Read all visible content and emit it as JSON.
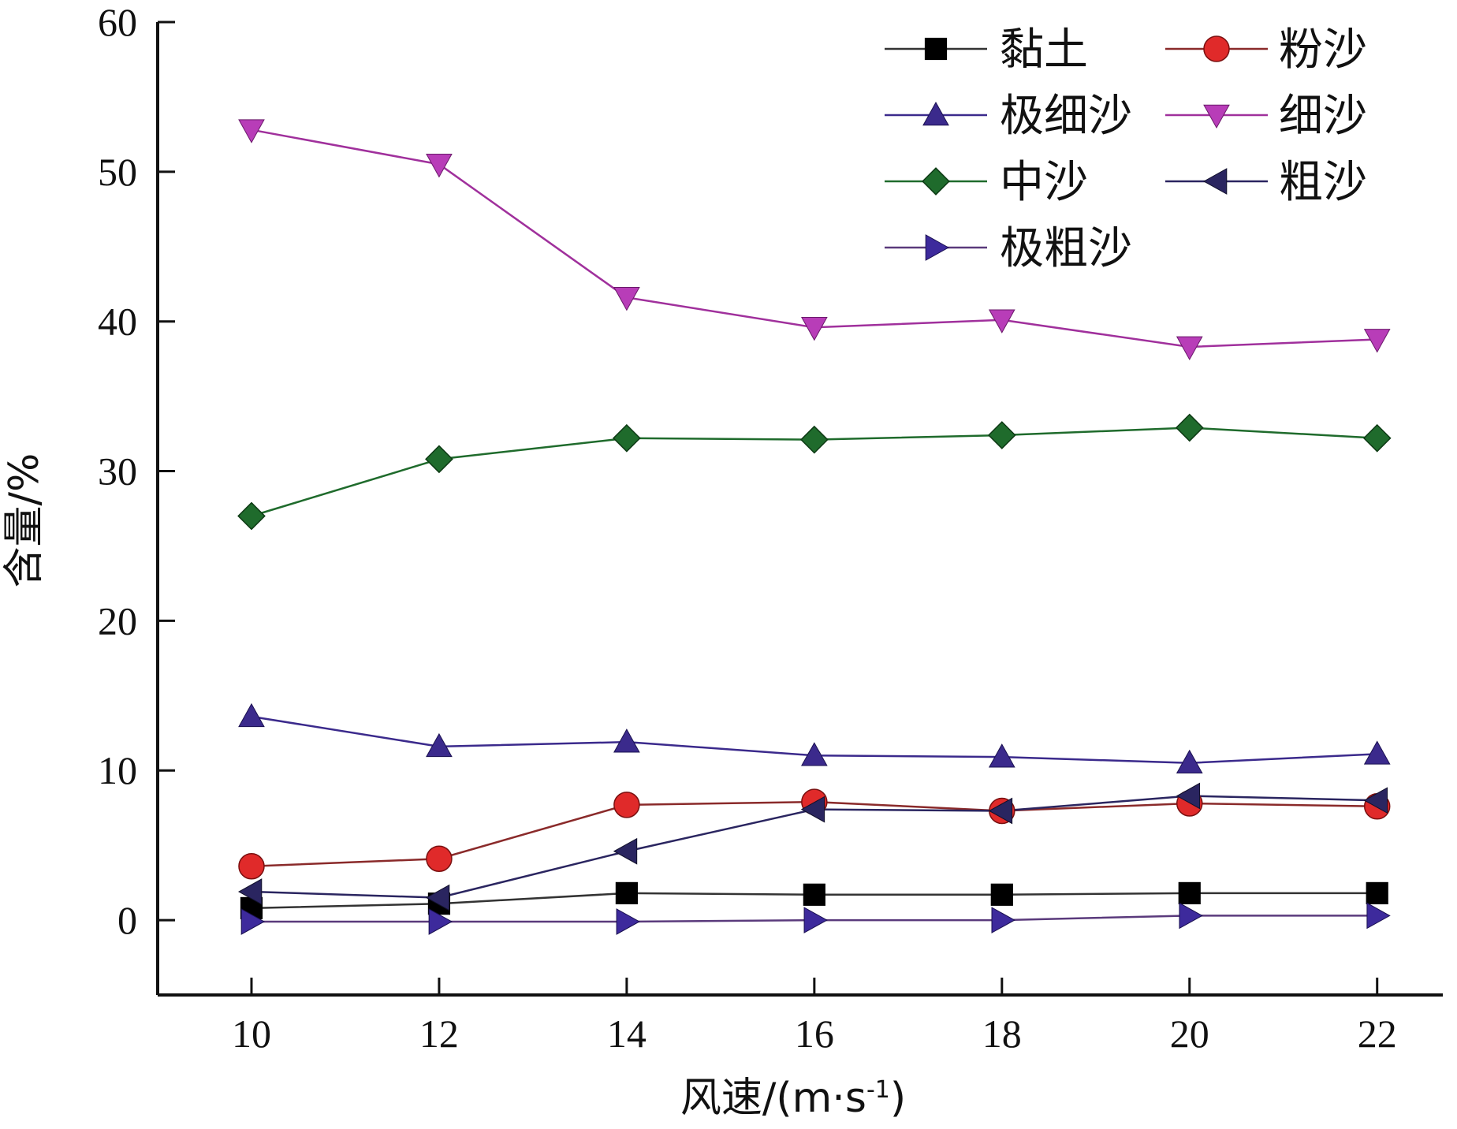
{
  "chart_data": {
    "type": "line",
    "title": "",
    "xlabel": "风速/(m·s-1)",
    "xlabel_parts": {
      "main": "风速/(m·s",
      "sup": "-1",
      "close": ")"
    },
    "ylabel": "含量/%",
    "x": [
      10,
      12,
      14,
      16,
      18,
      20,
      22
    ],
    "xlim": [
      9,
      22.7
    ],
    "ylim": [
      -5,
      60
    ],
    "xticks": [
      10,
      12,
      14,
      16,
      18,
      20,
      22
    ],
    "yticks": [
      0,
      10,
      20,
      30,
      40,
      50,
      60
    ],
    "grid": false,
    "legend_position": "top-right",
    "series": [
      {
        "name": "黏土",
        "marker": "square",
        "color": "#000000",
        "line_color": "#333333",
        "values": [
          0.8,
          1.1,
          1.8,
          1.7,
          1.7,
          1.8,
          1.8
        ]
      },
      {
        "name": "粉沙",
        "marker": "circle",
        "color": "#e02a2a",
        "line_color": "#8a2a2a",
        "values": [
          3.6,
          4.1,
          7.7,
          7.9,
          7.3,
          7.8,
          7.6
        ]
      },
      {
        "name": "极细沙",
        "marker": "triangle-up",
        "color": "#3b2a8c",
        "line_color": "#3b2a8c",
        "values": [
          13.6,
          11.6,
          11.9,
          11.0,
          10.9,
          10.5,
          11.1
        ]
      },
      {
        "name": "细沙",
        "marker": "triangle-down",
        "color": "#b83db8",
        "line_color": "#a0309c",
        "values": [
          52.8,
          50.5,
          41.6,
          39.6,
          40.1,
          38.3,
          38.8
        ]
      },
      {
        "name": "中沙",
        "marker": "diamond",
        "color": "#1f6b2c",
        "line_color": "#1f6b2c",
        "values": [
          27.0,
          30.8,
          32.2,
          32.1,
          32.4,
          32.9,
          32.2
        ]
      },
      {
        "name": "粗沙",
        "marker": "triangle-left",
        "color": "#2a2560",
        "line_color": "#2a2560",
        "values": [
          1.9,
          1.5,
          4.6,
          7.4,
          7.3,
          8.3,
          8.0
        ]
      },
      {
        "name": "极粗沙",
        "marker": "triangle-right",
        "color": "#3d2a9c",
        "line_color": "#5a3a7c",
        "values": [
          -0.1,
          -0.1,
          -0.1,
          0.0,
          0.0,
          0.3,
          0.3
        ]
      }
    ]
  }
}
